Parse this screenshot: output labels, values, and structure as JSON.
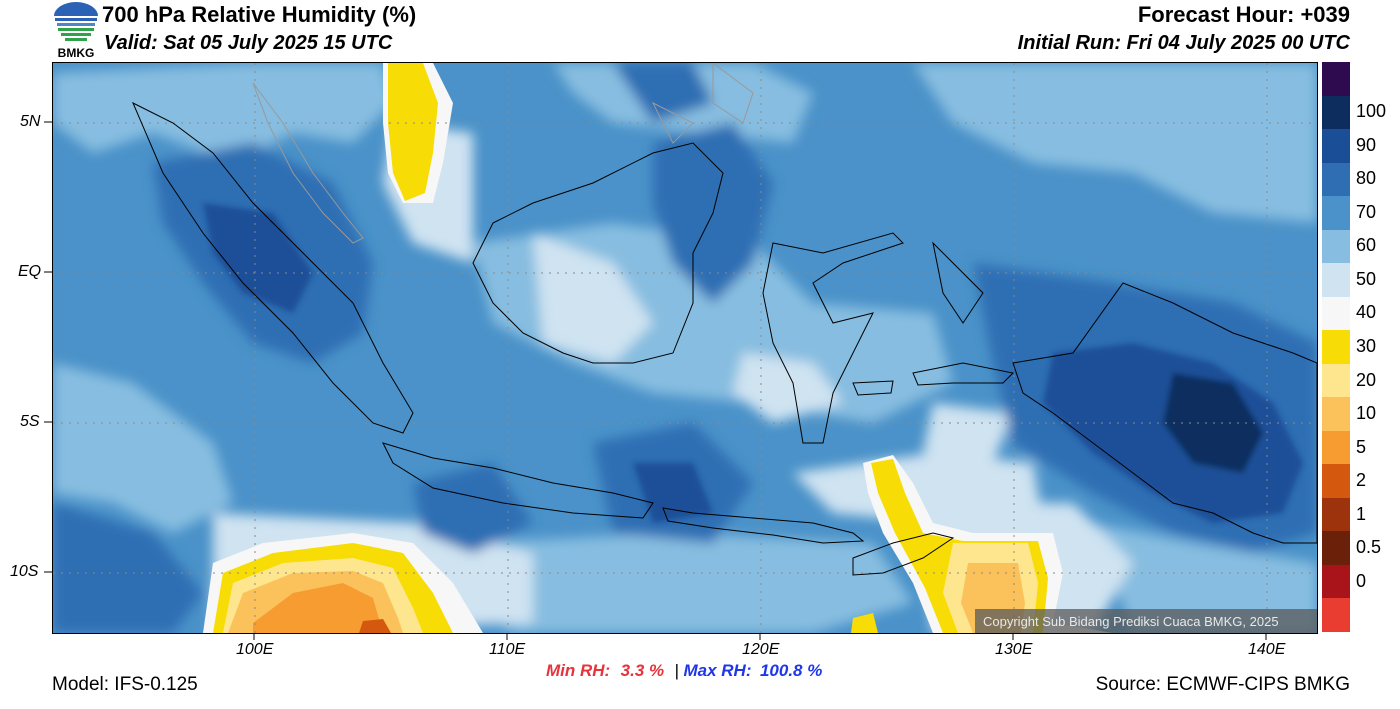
{
  "header": {
    "title": "700 hPa Relative Humidity (%)",
    "valid": "Valid: Sat 05 July 2025 15 UTC",
    "forecast_hour": "Forecast Hour: +039",
    "initial_run": "Initial Run: Fri 04 July 2025 00 UTC"
  },
  "logo": {
    "text": "BMKG",
    "icon": "bmkg-globe-logo"
  },
  "map": {
    "variable": "relative humidity at 700 hPa",
    "units": "%",
    "projection": "lat-lon",
    "lon_range": [
      92,
      142
    ],
    "lat_range": [
      -12,
      7
    ],
    "lat_ticks": [
      {
        "value": 5,
        "label": "5N"
      },
      {
        "value": 0,
        "label": "EQ"
      },
      {
        "value": -5,
        "label": "5S"
      },
      {
        "value": -10,
        "label": "10S"
      }
    ],
    "lon_ticks": [
      {
        "value": 100,
        "label": "100E"
      },
      {
        "value": 110,
        "label": "110E"
      },
      {
        "value": 120,
        "label": "120E"
      },
      {
        "value": 130,
        "label": "130E"
      },
      {
        "value": 140,
        "label": "140E"
      }
    ],
    "gridlines": true,
    "copyright": "Copyright Sub Bidang Prediksi Cuaca BMKG, 2025"
  },
  "colorbar": {
    "levels": [
      {
        "label": "",
        "color": "#2d0b4e"
      },
      {
        "label": "100",
        "color": "#0c2d5e"
      },
      {
        "label": "90",
        "color": "#1a4f98"
      },
      {
        "label": "80",
        "color": "#2f6eb3"
      },
      {
        "label": "70",
        "color": "#4a92c9"
      },
      {
        "label": "60",
        "color": "#87bde0"
      },
      {
        "label": "50",
        "color": "#cfe3f1"
      },
      {
        "label": "40",
        "color": "#f7f7f7"
      },
      {
        "label": "30",
        "color": "#f7dd05"
      },
      {
        "label": "20",
        "color": "#fde68e"
      },
      {
        "label": "10",
        "color": "#fbc25b"
      },
      {
        "label": "5",
        "color": "#f69c30"
      },
      {
        "label": "2",
        "color": "#d4590f"
      },
      {
        "label": "1",
        "color": "#9d330c"
      },
      {
        "label": "0.5",
        "color": "#6b200a"
      },
      {
        "label": "0",
        "color": "#a8141a"
      },
      {
        "label": "",
        "color": "#e83d30"
      }
    ]
  },
  "stats": {
    "min_label": "Min RH:",
    "min_value": "3.3 %",
    "separator": "|",
    "max_label": "Max RH:",
    "max_value": "100.8 %",
    "min_color": "#e8323c",
    "max_color": "#1f37e8"
  },
  "footer": {
    "model": "Model: IFS-0.125",
    "source": "Source: ECMWF-CIPS BMKG"
  }
}
